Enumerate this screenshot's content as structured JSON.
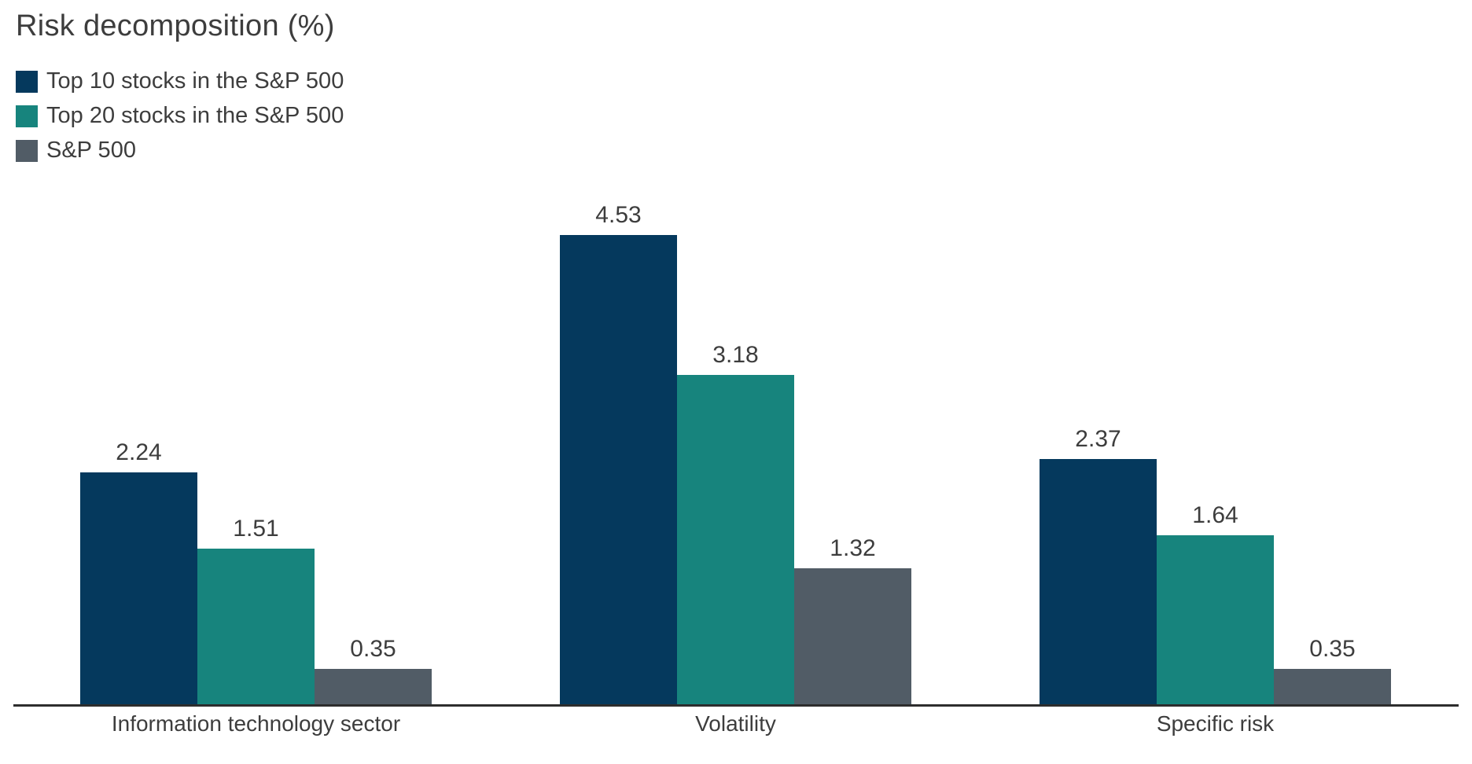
{
  "colors": {
    "background": "#ffffff",
    "text": "#3d3d3d",
    "axis": "#2d2d2d"
  },
  "chart_data": {
    "type": "bar",
    "title": "Risk decomposition (%)",
    "categories": [
      "Information technology sector",
      "Volatility",
      "Specific risk"
    ],
    "series": [
      {
        "name": "Top 10 stocks in the S&P 500",
        "color": "#05395d",
        "values": [
          2.24,
          4.53,
          2.37
        ]
      },
      {
        "name": "Top 20 stocks in the S&P 500",
        "color": "#17847d",
        "values": [
          1.51,
          3.18,
          1.64
        ]
      },
      {
        "name": "S&P 500",
        "color": "#515c66",
        "values": [
          0.35,
          1.32,
          0.35
        ]
      }
    ],
    "xlabel": "",
    "ylabel": "",
    "ylim": [
      0,
      4.6
    ],
    "grid": false,
    "y_axis_visible": false,
    "value_labels_shown": true,
    "legend_position": "top-left"
  }
}
